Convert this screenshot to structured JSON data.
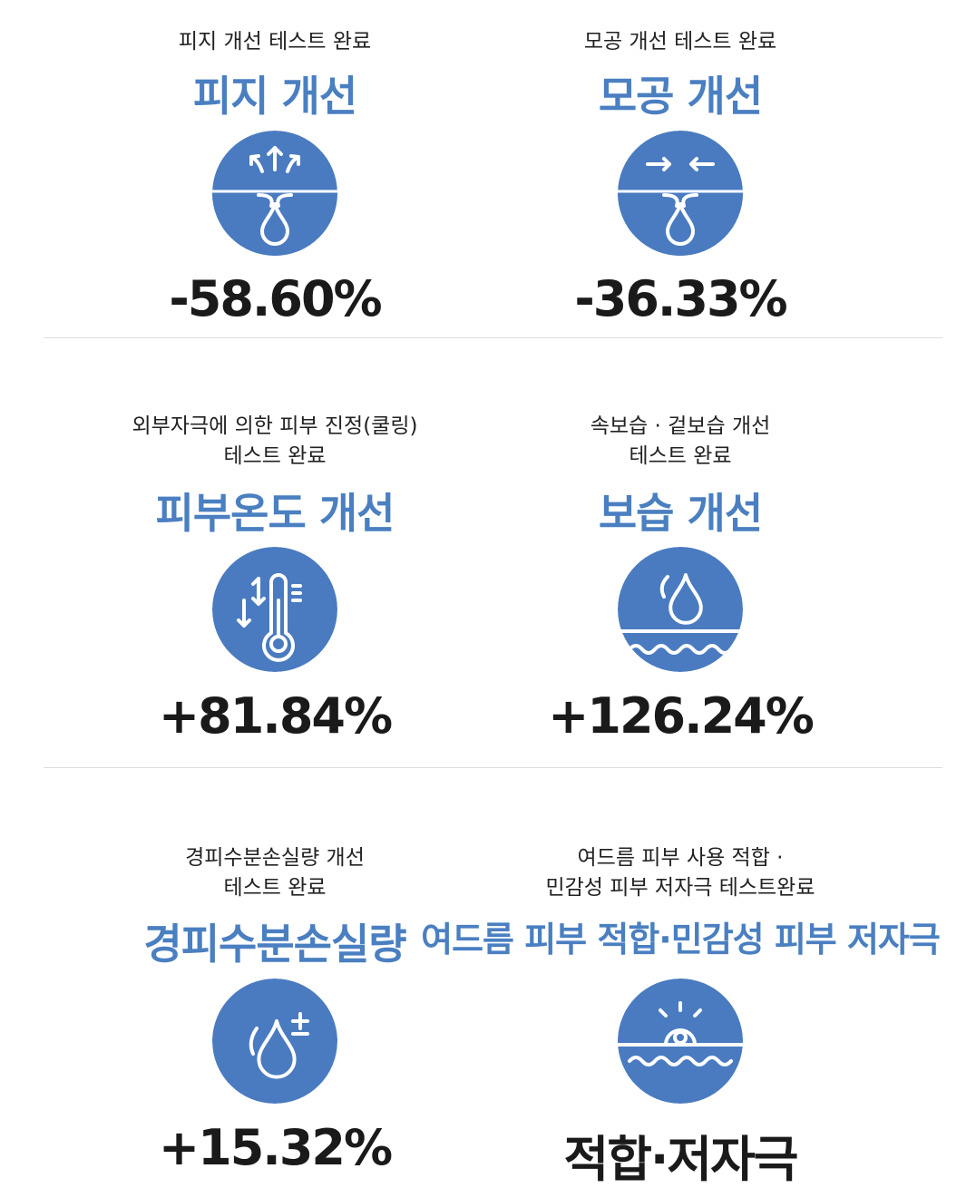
{
  "sections": [
    {
      "subtitle": [
        "피지 개선 테스트 완료"
      ],
      "headline": "피지 개선",
      "result": "-58.60%"
    },
    {
      "subtitle": [
        "모공 개선 테스트 완료"
      ],
      "headline": "모공 개선",
      "result": "-36.33%"
    },
    {
      "subtitle": [
        "외부자극에 의한 피부 진정(쿨링)",
        "테스트 완료"
      ],
      "headline": "피부온도 개선",
      "result": "+81.84%"
    },
    {
      "subtitle": [
        "속보습 · 겉보습 개선",
        "테스트 완료"
      ],
      "headline": "보습 개선",
      "result": "+126.24%"
    },
    {
      "subtitle": [
        "경피수분손실량 개선",
        "테스트 완료"
      ],
      "headline": "경피수분손실량",
      "result": "+15.32%"
    },
    {
      "subtitle": [
        "여드름 피부 사용 적합 ·",
        "민감성 피부 저자극 테스트완료"
      ],
      "headline": "여드름 피부 적합·민감성 피부 저자극",
      "result": "적합·저자극"
    }
  ]
}
